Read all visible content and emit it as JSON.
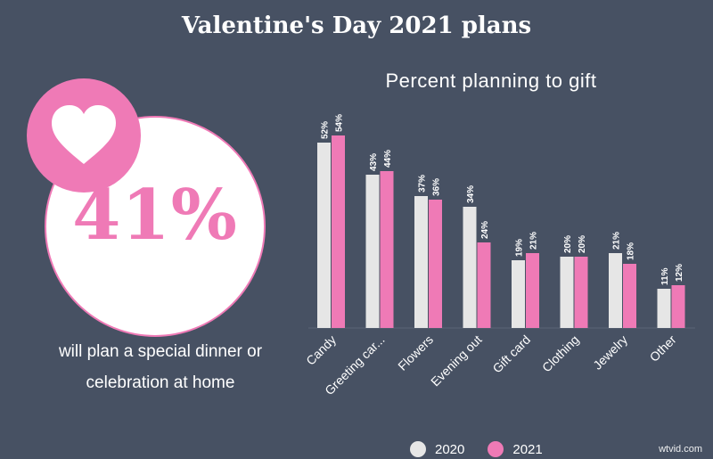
{
  "title": "Valentine's Day 2021 plans",
  "stat": {
    "value": "41%",
    "caption_line1": "will plan a special dinner or",
    "caption_line2": "celebration at home"
  },
  "watermark": "wtvid.com",
  "chart_data": {
    "type": "bar",
    "title": "Percent planning to gift",
    "xlabel": "",
    "ylabel": "",
    "ylim": [
      0,
      60
    ],
    "categories": [
      "Candy",
      "Greeting car...",
      "Flowers",
      "Evening out",
      "Gift card",
      "Clothing",
      "Jewelry",
      "Other"
    ],
    "series": [
      {
        "name": "2020",
        "color": "#e6e6e6",
        "values": [
          52,
          43,
          37,
          34,
          19,
          20,
          21,
          11
        ]
      },
      {
        "name": "2021",
        "color": "#ef7ab6",
        "values": [
          54,
          44,
          36,
          24,
          21,
          20,
          18,
          12
        ]
      }
    ],
    "value_suffix": "%",
    "legend": "bottom",
    "grid": false
  },
  "colors": {
    "background": "#475163",
    "accent": "#ef7ab6",
    "bar_2020": "#e6e6e6"
  },
  "icons": {
    "badge": "heart-icon"
  }
}
